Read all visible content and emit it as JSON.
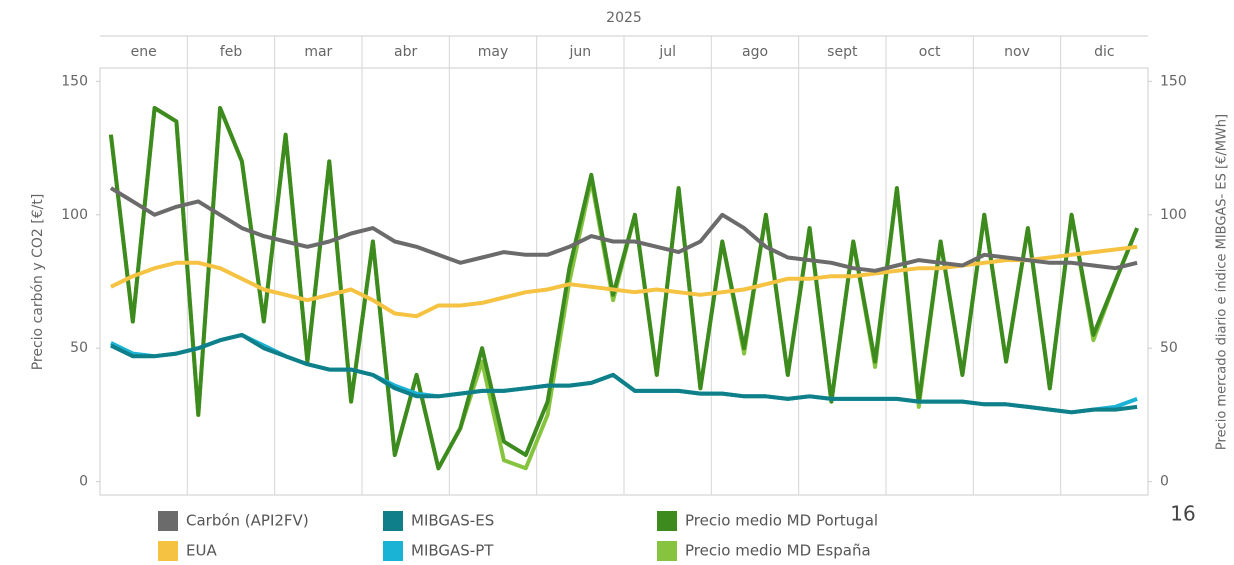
{
  "chart_data": {
    "type": "line",
    "year_label": "2025",
    "y_label": "Precio carbón y CO2 [€/t]",
    "y2_label": "Precio mercado diario e índice MIBGAS- ES [€/MWh]",
    "page_number": "16",
    "categories": [
      "ene",
      null,
      null,
      null,
      "feb",
      null,
      null,
      null,
      "mar",
      null,
      null,
      null,
      "abr",
      null,
      null,
      null,
      "may",
      null,
      null,
      null,
      "jun",
      null,
      null,
      null,
      "jul",
      null,
      null,
      null,
      "ago",
      null,
      null,
      null,
      "sept",
      null,
      null,
      null,
      "oct",
      null,
      null,
      null,
      "nov",
      null,
      null,
      null,
      "dic",
      null,
      null,
      null
    ],
    "ylim": [
      -5,
      155
    ],
    "yticks": [
      0,
      50,
      100,
      150
    ],
    "y2lim": [
      -5,
      155
    ],
    "y2ticks": [
      0,
      50,
      100,
      150
    ],
    "series": [
      {
        "name": "Carbón (API2FV)",
        "color": "#6b6b6b",
        "axis": "y",
        "values": [
          110,
          105,
          100,
          103,
          105,
          100,
          95,
          92,
          90,
          88,
          90,
          93,
          95,
          90,
          88,
          85,
          82,
          84,
          86,
          85,
          85,
          88,
          92,
          90,
          90,
          88,
          86,
          90,
          100,
          95,
          88,
          84,
          83,
          82,
          80,
          79,
          81,
          83,
          82,
          81,
          85,
          84,
          83,
          82,
          82,
          81,
          80,
          82
        ]
      },
      {
        "name": "EUA",
        "color": "#f5c242",
        "axis": "y",
        "values": [
          73,
          77,
          80,
          82,
          82,
          80,
          76,
          72,
          70,
          68,
          70,
          72,
          68,
          63,
          62,
          66,
          66,
          67,
          69,
          71,
          72,
          74,
          73,
          72,
          71,
          72,
          71,
          70,
          71,
          72,
          74,
          76,
          76,
          77,
          77,
          78,
          79,
          80,
          80,
          81,
          82,
          83,
          83,
          84,
          85,
          86,
          87,
          88
        ]
      },
      {
        "name": "MIBGAS-ES",
        "color": "#0f7f8a",
        "axis": "y2",
        "values": [
          51,
          47,
          47,
          48,
          50,
          53,
          55,
          50,
          47,
          44,
          42,
          42,
          40,
          35,
          32,
          32,
          33,
          34,
          34,
          35,
          36,
          36,
          37,
          40,
          34,
          34,
          34,
          33,
          33,
          32,
          32,
          31,
          32,
          31,
          31,
          31,
          31,
          30,
          30,
          30,
          29,
          29,
          28,
          27,
          26,
          27,
          27,
          28
        ]
      },
      {
        "name": "MIBGAS-PT",
        "color": "#1ab3d6",
        "axis": "y2",
        "values": [
          52,
          48,
          47,
          48,
          50,
          53,
          55,
          51,
          47,
          44,
          42,
          42,
          40,
          36,
          33,
          32,
          33,
          34,
          34,
          35,
          36,
          36,
          37,
          40,
          34,
          34,
          34,
          33,
          33,
          32,
          32,
          31,
          32,
          31,
          31,
          31,
          31,
          30,
          30,
          30,
          29,
          29,
          28,
          27,
          26,
          27,
          28,
          31
        ]
      },
      {
        "name": "Precio medio MD Portugal",
        "color": "#3d8a1f",
        "axis": "y2",
        "values": [
          130,
          60,
          140,
          135,
          25,
          140,
          120,
          60,
          130,
          45,
          120,
          30,
          90,
          10,
          40,
          5,
          20,
          50,
          15,
          10,
          30,
          80,
          115,
          70,
          100,
          40,
          110,
          35,
          90,
          50,
          100,
          40,
          95,
          30,
          90,
          45,
          110,
          30,
          90,
          40,
          100,
          45,
          95,
          35,
          100,
          55,
          75,
          95
        ]
      },
      {
        "name": "Precio medio MD España",
        "color": "#86c440",
        "axis": "y2",
        "values": [
          130,
          60,
          140,
          135,
          25,
          140,
          120,
          60,
          130,
          45,
          120,
          30,
          90,
          10,
          40,
          5,
          20,
          45,
          8,
          5,
          25,
          75,
          113,
          68,
          100,
          40,
          110,
          35,
          90,
          48,
          100,
          40,
          95,
          30,
          90,
          43,
          110,
          28,
          90,
          40,
          100,
          45,
          95,
          35,
          100,
          53,
          75,
          95
        ]
      }
    ]
  }
}
